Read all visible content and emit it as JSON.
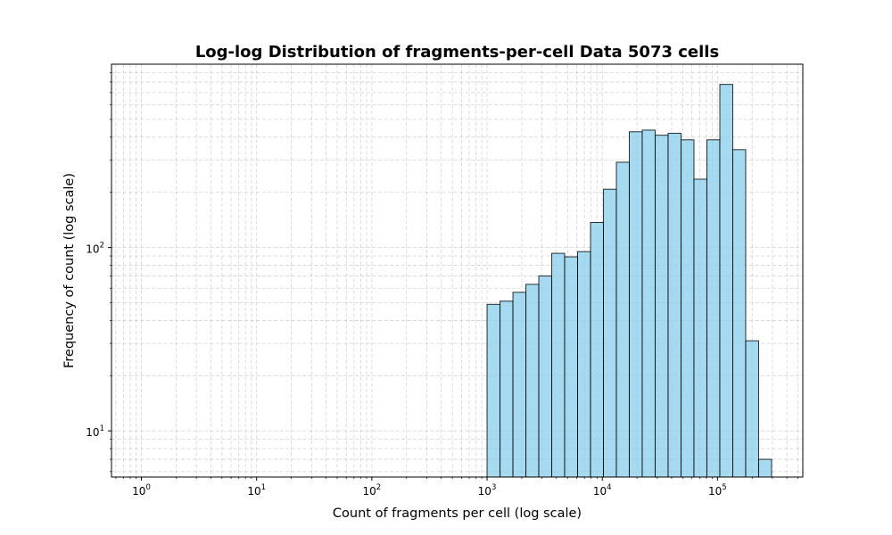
{
  "chart_data": {
    "type": "bar",
    "title": "Log-log Distribution of fragments-per-cell Data 5073 cells",
    "xlabel": "Count of fragments per cell (log scale)",
    "ylabel": "Frequency of count (log scale)",
    "x_scale": "log",
    "y_scale": "log",
    "xlim": [
      0.55,
      550000
    ],
    "ylim": [
      5.6,
      1000
    ],
    "grid": true,
    "grid_style": "dashed",
    "bar_color": "#87CEEB",
    "bar_edge_color": "#000000",
    "x_ticks": [
      {
        "base": "10",
        "exp": "0",
        "value": 1
      },
      {
        "base": "10",
        "exp": "1",
        "value": 10
      },
      {
        "base": "10",
        "exp": "2",
        "value": 100
      },
      {
        "base": "10",
        "exp": "3",
        "value": 1000
      },
      {
        "base": "10",
        "exp": "4",
        "value": 10000
      },
      {
        "base": "10",
        "exp": "5",
        "value": 100000
      }
    ],
    "y_ticks": [
      {
        "base": "10",
        "exp": "1",
        "value": 10
      },
      {
        "base": "10",
        "exp": "2",
        "value": 100
      }
    ],
    "bin_edges": [
      1000,
      1295,
      1677,
      2172,
      2812,
      3641,
      4715,
      6105,
      7906,
      10237,
      13256,
      17165,
      22227,
      28782,
      37269,
      48259,
      62490,
      80918,
      104780,
      135678,
      175688,
      227496,
      294581
    ],
    "values": [
      49,
      51,
      57,
      63,
      70,
      93,
      89,
      95,
      137,
      208,
      292,
      428,
      437,
      410,
      420,
      387,
      236,
      387,
      776,
      342,
      31,
      7
    ]
  }
}
